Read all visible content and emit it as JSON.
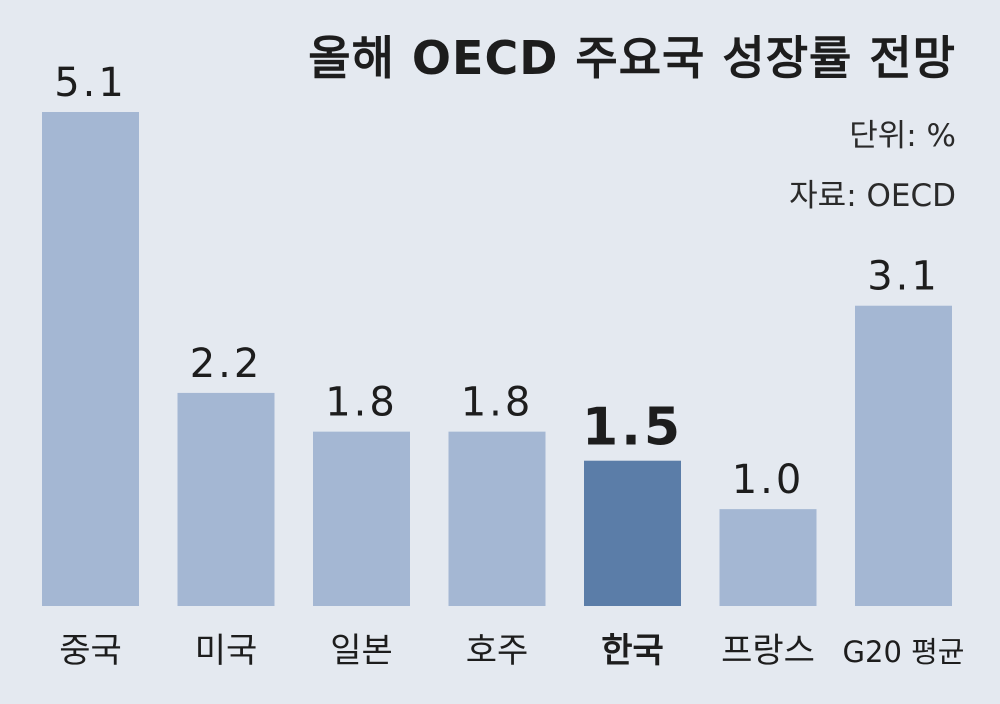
{
  "chart_data": {
    "type": "bar",
    "title": "올해 OECD 주요국 성장률 전망",
    "unit_label": "단위: %",
    "source_label": "자료: OECD",
    "categories": [
      "중국",
      "미국",
      "일본",
      "호주",
      "한국",
      "프랑스",
      "G20 평균"
    ],
    "values": [
      5.1,
      2.2,
      1.8,
      1.8,
      1.5,
      1.0,
      3.1
    ],
    "value_labels": [
      "5.1",
      "2.2",
      "1.8",
      "1.8",
      "1.5",
      "1.0",
      "3.1"
    ],
    "highlight_category": "한국",
    "ylim": [
      0,
      5.1
    ],
    "grid": false,
    "legend": "none",
    "colors": {
      "background": "#e4e9f0",
      "bar": "#a4b7d3",
      "bar_highlight": "#5b7da8",
      "text": "#1d1d1d"
    }
  }
}
